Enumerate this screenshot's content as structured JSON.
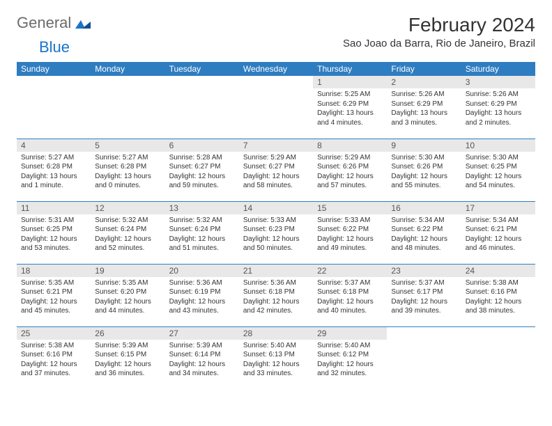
{
  "brand": {
    "part1": "General",
    "part2": "Blue"
  },
  "title": "February 2024",
  "location": "Sao Joao da Barra, Rio de Janeiro, Brazil",
  "colors": {
    "header_bg": "#2f7dc1",
    "header_text": "#ffffff",
    "daynum_bg": "#e8e8e8",
    "daynum_text": "#555555",
    "body_text": "#333333",
    "rule": "#2f7dc1",
    "logo_gray": "#6b6b6b",
    "logo_blue": "#1a73c9"
  },
  "weekdays": [
    "Sunday",
    "Monday",
    "Tuesday",
    "Wednesday",
    "Thursday",
    "Friday",
    "Saturday"
  ],
  "weeks": [
    [
      null,
      null,
      null,
      null,
      {
        "n": "1",
        "sunrise": "5:25 AM",
        "sunset": "6:29 PM",
        "daylight": "13 hours and 4 minutes."
      },
      {
        "n": "2",
        "sunrise": "5:26 AM",
        "sunset": "6:29 PM",
        "daylight": "13 hours and 3 minutes."
      },
      {
        "n": "3",
        "sunrise": "5:26 AM",
        "sunset": "6:29 PM",
        "daylight": "13 hours and 2 minutes."
      }
    ],
    [
      {
        "n": "4",
        "sunrise": "5:27 AM",
        "sunset": "6:28 PM",
        "daylight": "13 hours and 1 minute."
      },
      {
        "n": "5",
        "sunrise": "5:27 AM",
        "sunset": "6:28 PM",
        "daylight": "13 hours and 0 minutes."
      },
      {
        "n": "6",
        "sunrise": "5:28 AM",
        "sunset": "6:27 PM",
        "daylight": "12 hours and 59 minutes."
      },
      {
        "n": "7",
        "sunrise": "5:29 AM",
        "sunset": "6:27 PM",
        "daylight": "12 hours and 58 minutes."
      },
      {
        "n": "8",
        "sunrise": "5:29 AM",
        "sunset": "6:26 PM",
        "daylight": "12 hours and 57 minutes."
      },
      {
        "n": "9",
        "sunrise": "5:30 AM",
        "sunset": "6:26 PM",
        "daylight": "12 hours and 55 minutes."
      },
      {
        "n": "10",
        "sunrise": "5:30 AM",
        "sunset": "6:25 PM",
        "daylight": "12 hours and 54 minutes."
      }
    ],
    [
      {
        "n": "11",
        "sunrise": "5:31 AM",
        "sunset": "6:25 PM",
        "daylight": "12 hours and 53 minutes."
      },
      {
        "n": "12",
        "sunrise": "5:32 AM",
        "sunset": "6:24 PM",
        "daylight": "12 hours and 52 minutes."
      },
      {
        "n": "13",
        "sunrise": "5:32 AM",
        "sunset": "6:24 PM",
        "daylight": "12 hours and 51 minutes."
      },
      {
        "n": "14",
        "sunrise": "5:33 AM",
        "sunset": "6:23 PM",
        "daylight": "12 hours and 50 minutes."
      },
      {
        "n": "15",
        "sunrise": "5:33 AM",
        "sunset": "6:22 PM",
        "daylight": "12 hours and 49 minutes."
      },
      {
        "n": "16",
        "sunrise": "5:34 AM",
        "sunset": "6:22 PM",
        "daylight": "12 hours and 48 minutes."
      },
      {
        "n": "17",
        "sunrise": "5:34 AM",
        "sunset": "6:21 PM",
        "daylight": "12 hours and 46 minutes."
      }
    ],
    [
      {
        "n": "18",
        "sunrise": "5:35 AM",
        "sunset": "6:21 PM",
        "daylight": "12 hours and 45 minutes."
      },
      {
        "n": "19",
        "sunrise": "5:35 AM",
        "sunset": "6:20 PM",
        "daylight": "12 hours and 44 minutes."
      },
      {
        "n": "20",
        "sunrise": "5:36 AM",
        "sunset": "6:19 PM",
        "daylight": "12 hours and 43 minutes."
      },
      {
        "n": "21",
        "sunrise": "5:36 AM",
        "sunset": "6:18 PM",
        "daylight": "12 hours and 42 minutes."
      },
      {
        "n": "22",
        "sunrise": "5:37 AM",
        "sunset": "6:18 PM",
        "daylight": "12 hours and 40 minutes."
      },
      {
        "n": "23",
        "sunrise": "5:37 AM",
        "sunset": "6:17 PM",
        "daylight": "12 hours and 39 minutes."
      },
      {
        "n": "24",
        "sunrise": "5:38 AM",
        "sunset": "6:16 PM",
        "daylight": "12 hours and 38 minutes."
      }
    ],
    [
      {
        "n": "25",
        "sunrise": "5:38 AM",
        "sunset": "6:16 PM",
        "daylight": "12 hours and 37 minutes."
      },
      {
        "n": "26",
        "sunrise": "5:39 AM",
        "sunset": "6:15 PM",
        "daylight": "12 hours and 36 minutes."
      },
      {
        "n": "27",
        "sunrise": "5:39 AM",
        "sunset": "6:14 PM",
        "daylight": "12 hours and 34 minutes."
      },
      {
        "n": "28",
        "sunrise": "5:40 AM",
        "sunset": "6:13 PM",
        "daylight": "12 hours and 33 minutes."
      },
      {
        "n": "29",
        "sunrise": "5:40 AM",
        "sunset": "6:12 PM",
        "daylight": "12 hours and 32 minutes."
      },
      null,
      null
    ]
  ],
  "labels": {
    "sunrise": "Sunrise: ",
    "sunset": "Sunset: ",
    "daylight": "Daylight: "
  }
}
